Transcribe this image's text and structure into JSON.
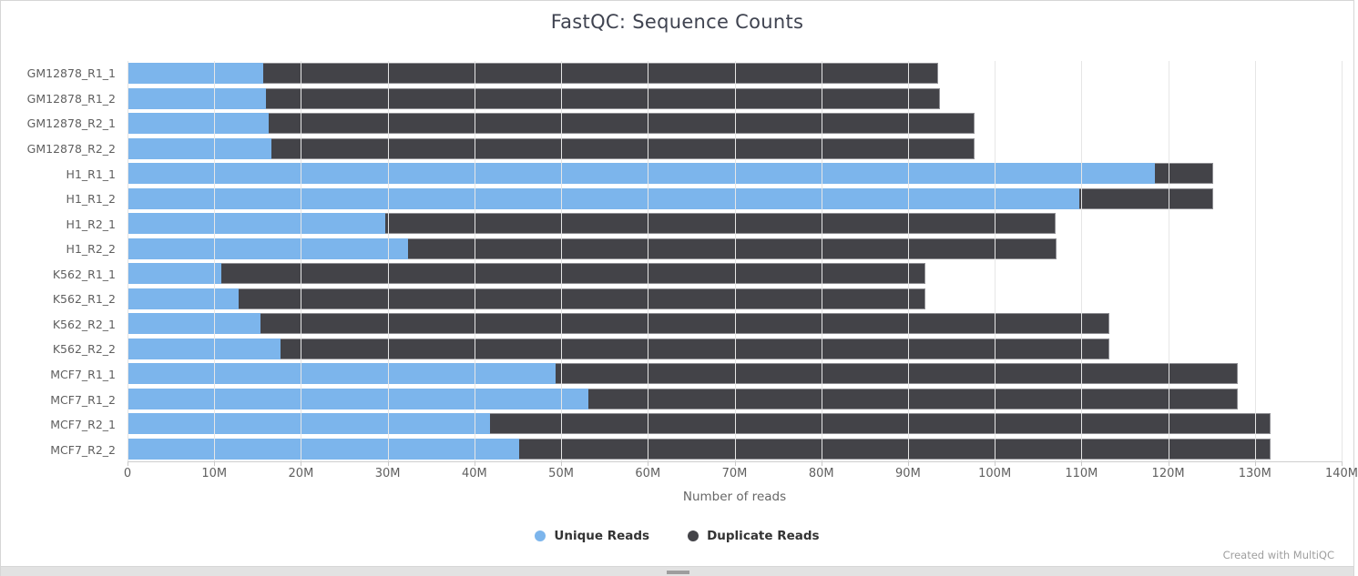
{
  "title": "FastQC: Sequence Counts",
  "xaxis_title": "Number of reads",
  "watermark": "Created with MultiQC",
  "colors": {
    "unique": "#7cb5ec",
    "duplicate": "#434348",
    "gridline": "#e6e6e6",
    "title_text": "#3f4350",
    "axis_text": "#606060"
  },
  "legend": [
    {
      "label": "Unique Reads",
      "color": "#7cb5ec"
    },
    {
      "label": "Duplicate Reads",
      "color": "#434348"
    }
  ],
  "chart_data": {
    "type": "bar",
    "orientation": "horizontal",
    "stacked": true,
    "title": "FastQC: Sequence Counts",
    "xlabel": "Number of reads",
    "ylabel": "",
    "xlim": [
      0,
      140
    ],
    "unit": "millions of reads",
    "grid": true,
    "legend_position": "bottom",
    "x_tick_values": [
      0,
      10,
      20,
      30,
      40,
      50,
      60,
      70,
      80,
      90,
      100,
      110,
      120,
      130,
      140
    ],
    "x_tick_labels": [
      "0",
      "10M",
      "20M",
      "30M",
      "40M",
      "50M",
      "60M",
      "70M",
      "80M",
      "90M",
      "100M",
      "110M",
      "120M",
      "130M",
      "140M"
    ],
    "categories": [
      "GM12878_R1_1",
      "GM12878_R1_2",
      "GM12878_R2_1",
      "GM12878_R2_2",
      "H1_R1_1",
      "H1_R1_2",
      "H1_R2_1",
      "H1_R2_2",
      "K562_R1_1",
      "K562_R1_2",
      "K562_R2_1",
      "K562_R2_2",
      "MCF7_R1_1",
      "MCF7_R1_2",
      "MCF7_R2_1",
      "MCF7_R2_2"
    ],
    "series": [
      {
        "name": "Unique Reads",
        "color": "#7cb5ec",
        "values": [
          15.6,
          16.0,
          16.3,
          16.6,
          118.5,
          109.7,
          29.7,
          32.3,
          10.8,
          12.8,
          15.3,
          17.6,
          49.4,
          53.1,
          41.8,
          45.2
        ]
      },
      {
        "name": "Duplicate Reads",
        "color": "#434348",
        "values": [
          77.9,
          77.7,
          81.4,
          81.1,
          6.7,
          15.5,
          77.3,
          74.8,
          81.2,
          79.2,
          97.9,
          95.6,
          78.6,
          74.9,
          90.0,
          86.6
        ]
      }
    ]
  }
}
